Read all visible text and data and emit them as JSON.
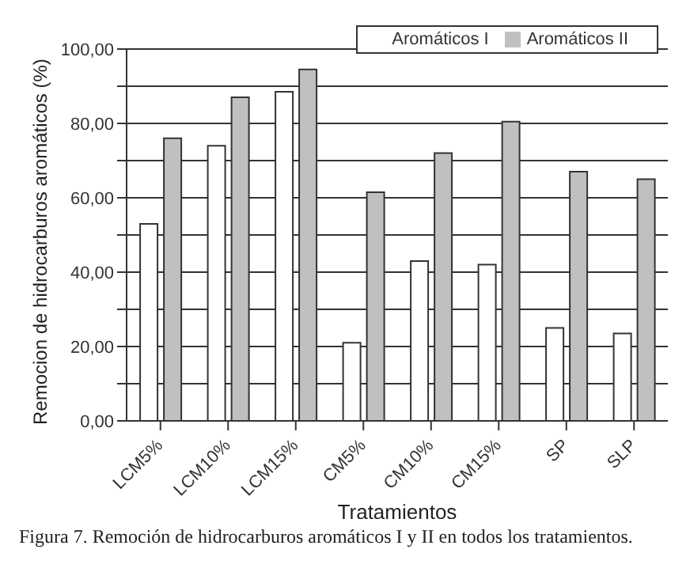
{
  "chart_data": {
    "type": "bar",
    "xlabel": "Tratamientos",
    "ylabel": "Remocion de hidrocarburos aromáticos (%)",
    "categories": [
      "LCM5%",
      "LCM10%",
      "LCM15%",
      "CM5%",
      "CM10%",
      "CM15%",
      "SP",
      "SLP"
    ],
    "series": [
      {
        "name": "Aromáticos I",
        "color": "#ffffff",
        "values": [
          53,
          74,
          88.5,
          21,
          43,
          42,
          25,
          23.5
        ]
      },
      {
        "name": "Aromáticos II",
        "color": "#c0c0c0",
        "values": [
          76,
          87,
          94.5,
          61.5,
          72,
          80.5,
          67,
          65
        ]
      }
    ],
    "ylim": [
      0,
      100
    ],
    "yticks": [
      {
        "value": 0,
        "label": "0,00"
      },
      {
        "value": 10,
        "label": null
      },
      {
        "value": 20,
        "label": "20,00"
      },
      {
        "value": 30,
        "label": null
      },
      {
        "value": 40,
        "label": "40,00"
      },
      {
        "value": 50,
        "label": null
      },
      {
        "value": 60,
        "label": "60,00"
      },
      {
        "value": 70,
        "label": null
      },
      {
        "value": 80,
        "label": "80,00"
      },
      {
        "value": 90,
        "label": null
      },
      {
        "value": 100,
        "label": "100,00"
      }
    ],
    "grid": "y",
    "legend": "top right",
    "annotations": [
      "Figura 7. Remoción de hidrocarburos aromáticos I y II en todos los tratamientos."
    ]
  }
}
